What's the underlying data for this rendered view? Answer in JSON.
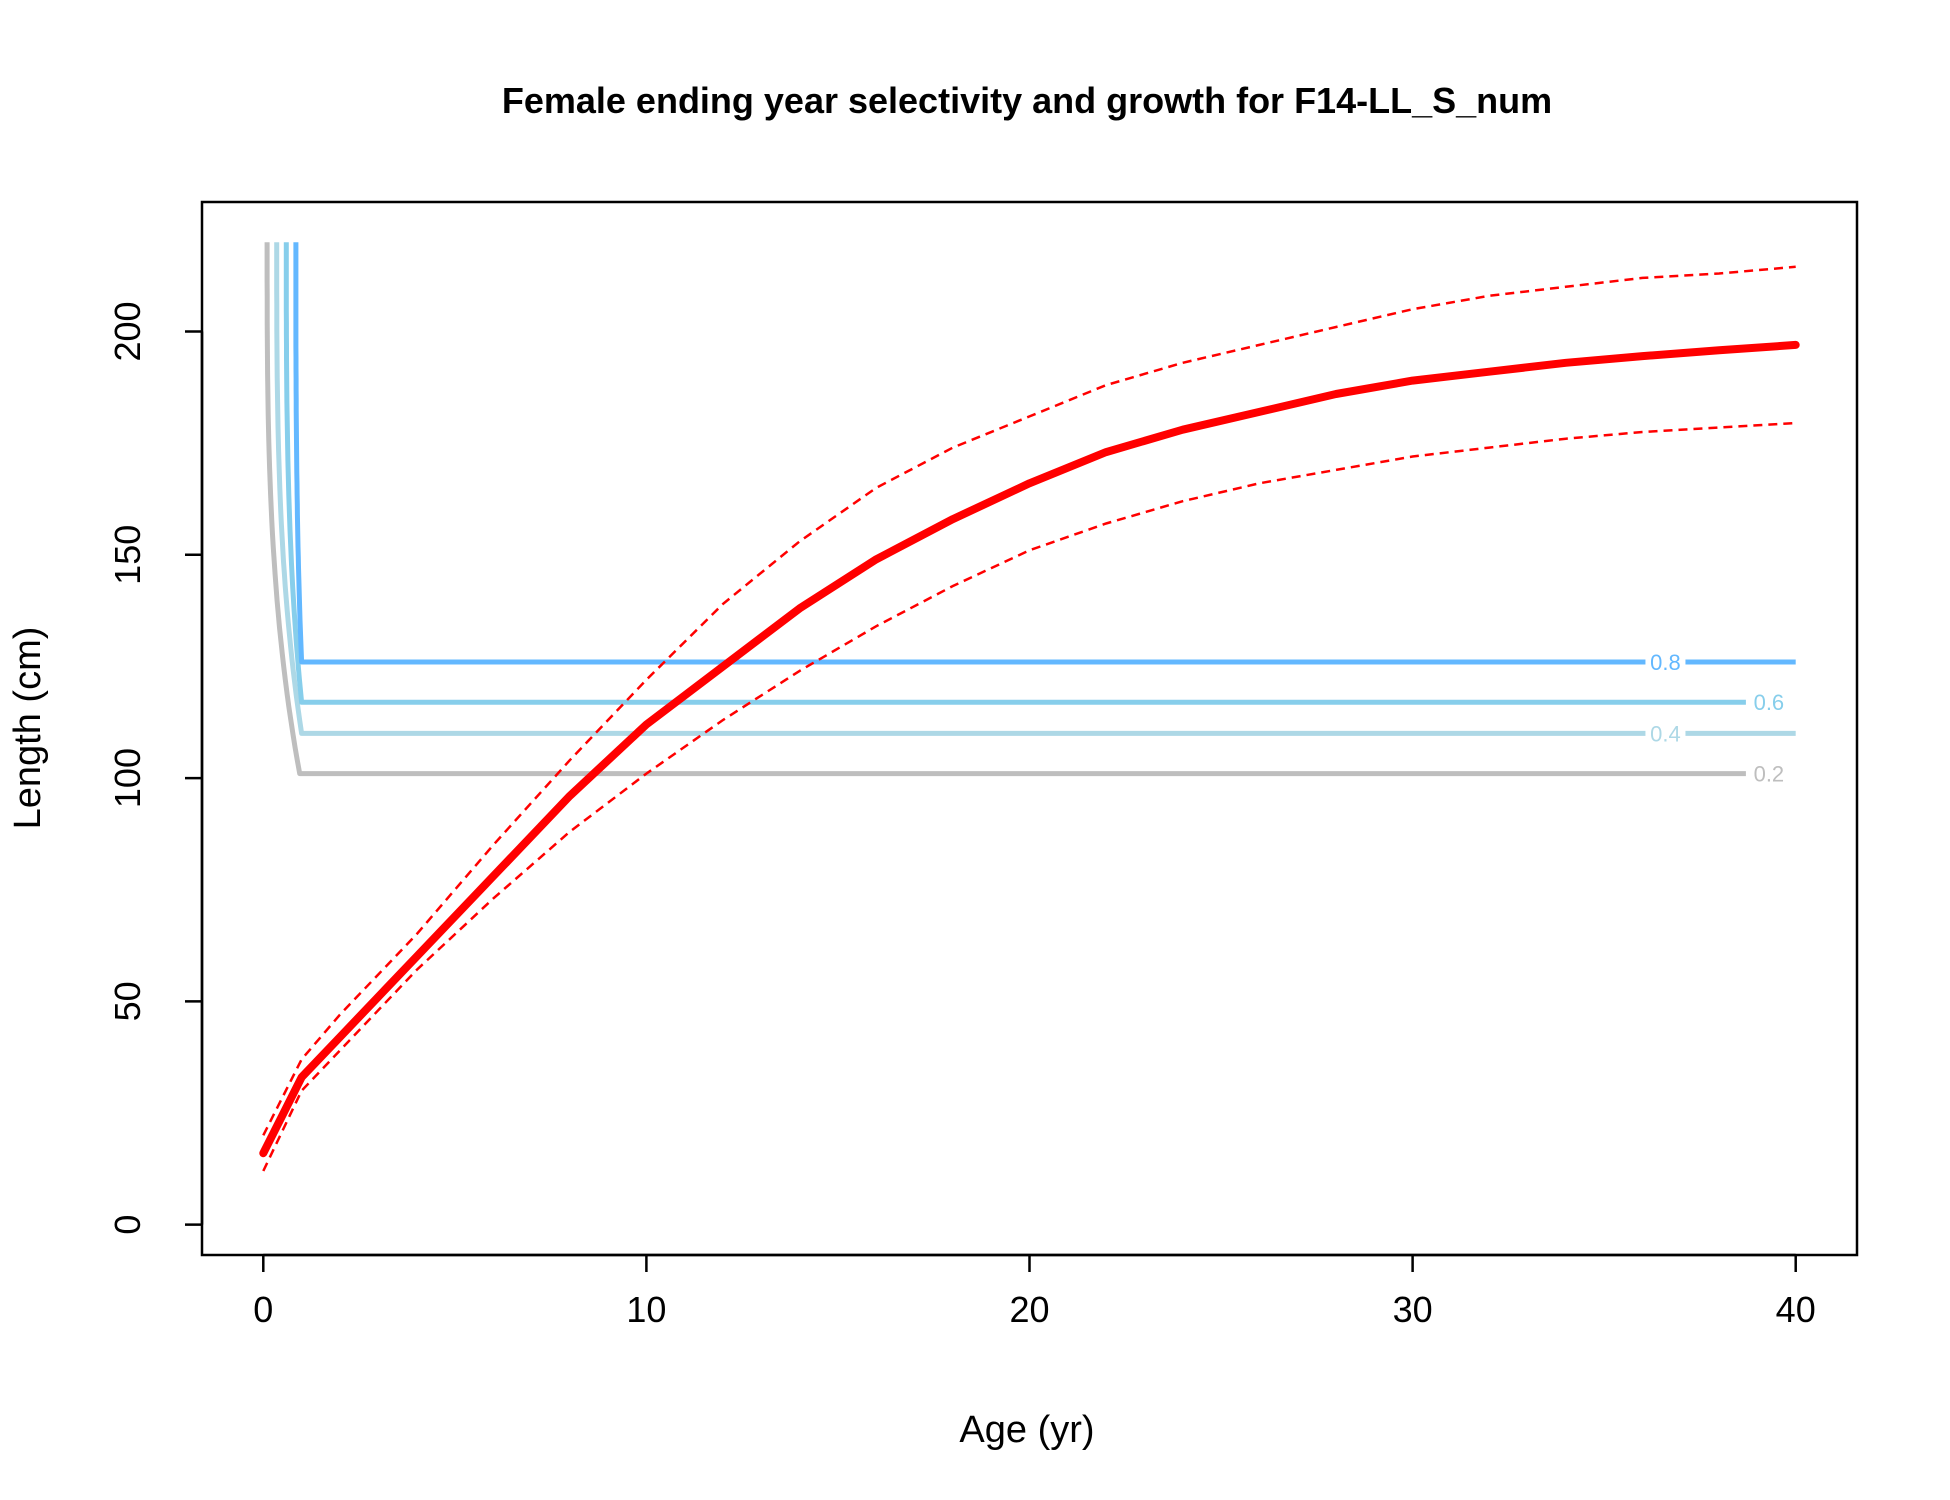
{
  "chart_data": {
    "type": "line",
    "title": "Female ending year selectivity and growth for F14-LL_S_num",
    "xlabel": "Age (yr)",
    "ylabel": "Length (cm)",
    "xlim": [
      -1.6,
      41.6
    ],
    "ylim": [
      -6.8,
      229
    ],
    "x_ticks": [
      0,
      10,
      20,
      30,
      40
    ],
    "y_ticks": [
      0,
      50,
      100,
      150,
      200
    ],
    "grid": false,
    "growth": {
      "color": "#ff0000",
      "mean": {
        "x": [
          0,
          1,
          2,
          4,
          6,
          8,
          10,
          12,
          14,
          16,
          18,
          20,
          22,
          24,
          26,
          28,
          30,
          32,
          34,
          36,
          38,
          40
        ],
        "y": [
          16,
          33,
          42,
          60,
          78,
          96,
          112,
          125,
          138,
          149,
          158,
          166,
          173,
          178,
          182,
          186,
          189,
          191,
          193,
          194.5,
          195.8,
          197
        ]
      },
      "upper": {
        "x": [
          0,
          1,
          2,
          4,
          6,
          8,
          10,
          12,
          14,
          16,
          18,
          20,
          22,
          24,
          26,
          28,
          30,
          32,
          34,
          36,
          38,
          40
        ],
        "y": [
          20,
          37,
          47,
          65,
          85,
          104,
          122,
          139,
          153,
          165,
          174,
          181,
          188,
          193,
          197,
          201,
          205,
          208,
          210,
          212,
          213,
          214.5
        ]
      },
      "lower": {
        "x": [
          0,
          1,
          2,
          4,
          6,
          8,
          10,
          12,
          14,
          16,
          18,
          20,
          22,
          24,
          26,
          28,
          30,
          32,
          34,
          36,
          38,
          40
        ],
        "y": [
          12,
          30,
          39,
          57,
          73,
          88,
          101,
          113,
          124,
          134,
          143,
          151,
          157,
          162,
          166,
          169,
          172,
          174,
          176,
          177.5,
          178.5,
          179.5
        ]
      }
    },
    "selectivity_contours": [
      {
        "level": "0.2",
        "color": "#bebebe",
        "x0": 0.1,
        "elbow_x": 0.95,
        "plateau_y": 101,
        "x_end": 38.7,
        "label_x": 39.3
      },
      {
        "level": "0.4",
        "color": "#add8e6",
        "x0": 0.35,
        "elbow_x": 1.0,
        "plateau_y": 110,
        "x_end": 40,
        "label_x": 36.6
      },
      {
        "level": "0.6",
        "color": "#87ceeb",
        "x0": 0.6,
        "elbow_x": 1.0,
        "plateau_y": 117,
        "x_end": 38.7,
        "label_x": 39.3
      },
      {
        "level": "0.8",
        "color": "#63b8ff",
        "x0": 0.85,
        "elbow_x": 1.0,
        "plateau_y": 126,
        "x_end": 40,
        "label_x": 36.6
      }
    ],
    "contour_top_y": 220
  }
}
